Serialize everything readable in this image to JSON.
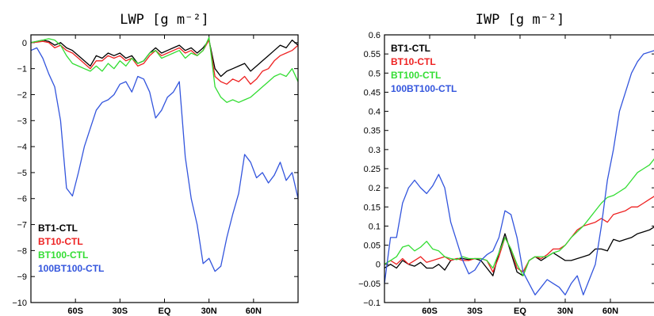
{
  "chart_data": [
    {
      "type": "line",
      "title": "LWP [g m⁻²]",
      "xlabel": "",
      "ylabel": "",
      "x_unit": "latitude (degrees, negative = south)",
      "xlim": [
        -90,
        90
      ],
      "ylim": [
        -10,
        0.3
      ],
      "yticks": [
        0,
        -1,
        -2,
        -3,
        -4,
        -5,
        -6,
        -7,
        -8,
        -9,
        -10
      ],
      "ytick_labels": [
        "0",
        "−1",
        "−2",
        "−3",
        "−4",
        "−5",
        "−6",
        "−7",
        "−8",
        "−9",
        "−10"
      ],
      "xticks": [
        -60,
        -30,
        0,
        30,
        60
      ],
      "xtick_labels": [
        "60S",
        "30S",
        "EQ",
        "30N",
        "60N"
      ],
      "legend_position": "bottom-left",
      "x": [
        -90,
        -86,
        -82,
        -78,
        -74,
        -70,
        -66,
        -62,
        -58,
        -54,
        -50,
        -46,
        -42,
        -38,
        -34,
        -30,
        -26,
        -22,
        -18,
        -14,
        -10,
        -6,
        -2,
        2,
        6,
        10,
        14,
        18,
        22,
        26,
        30,
        34,
        38,
        42,
        46,
        50,
        54,
        58,
        62,
        66,
        70,
        74,
        78,
        82,
        86,
        90
      ],
      "series": [
        {
          "name": "BT1-CTL",
          "color": "#000000",
          "values": [
            0,
            0.05,
            0.1,
            0.05,
            -0.1,
            0,
            -0.2,
            -0.3,
            -0.5,
            -0.7,
            -0.9,
            -0.5,
            -0.6,
            -0.4,
            -0.5,
            -0.4,
            -0.6,
            -0.5,
            -0.8,
            -0.7,
            -0.4,
            -0.2,
            -0.4,
            -0.3,
            -0.2,
            -0.1,
            -0.3,
            -0.2,
            -0.4,
            -0.2,
            0.1,
            -1.0,
            -1.3,
            -1.1,
            -1.0,
            -0.9,
            -0.8,
            -1.1,
            -0.9,
            -0.7,
            -0.5,
            -0.3,
            -0.1,
            -0.2,
            0.1,
            -0.1
          ]
        },
        {
          "name": "BT10-CTL",
          "color": "#ee2222",
          "values": [
            0,
            0.02,
            0.05,
            0,
            -0.2,
            -0.1,
            -0.3,
            -0.4,
            -0.6,
            -0.8,
            -1.0,
            -0.7,
            -0.7,
            -0.5,
            -0.6,
            -0.5,
            -0.7,
            -0.6,
            -0.9,
            -0.8,
            -0.5,
            -0.3,
            -0.5,
            -0.4,
            -0.3,
            -0.2,
            -0.4,
            -0.3,
            -0.5,
            -0.3,
            0.1,
            -1.3,
            -1.5,
            -1.6,
            -1.4,
            -1.5,
            -1.3,
            -1.6,
            -1.4,
            -1.1,
            -1.0,
            -0.7,
            -0.5,
            -0.4,
            -0.3,
            -0.1
          ]
        },
        {
          "name": "BT100-CTL",
          "color": "#33dd33",
          "values": [
            0,
            0.05,
            0.1,
            0.15,
            0.1,
            -0.1,
            -0.5,
            -0.8,
            -0.9,
            -1.0,
            -1.1,
            -0.9,
            -1.1,
            -0.8,
            -1.0,
            -0.7,
            -0.9,
            -0.6,
            -0.8,
            -0.7,
            -0.4,
            -0.3,
            -0.6,
            -0.5,
            -0.4,
            -0.3,
            -0.6,
            -0.4,
            -0.5,
            -0.3,
            0.2,
            -1.7,
            -2.1,
            -2.3,
            -2.2,
            -2.3,
            -2.2,
            -2.1,
            -1.9,
            -1.7,
            -1.5,
            -1.3,
            -1.2,
            -1.3,
            -1.0,
            -1.5
          ]
        },
        {
          "name": "100BT100-CTL",
          "color": "#3355dd",
          "values": [
            -0.3,
            -0.2,
            -0.6,
            -1.2,
            -1.7,
            -3.0,
            -5.6,
            -5.9,
            -5.0,
            -4.0,
            -3.3,
            -2.6,
            -2.3,
            -2.2,
            -2.0,
            -1.6,
            -1.5,
            -1.9,
            -1.3,
            -1.4,
            -1.9,
            -2.9,
            -2.6,
            -2.1,
            -1.9,
            -1.5,
            -4.4,
            -6.0,
            -7.0,
            -8.5,
            -8.3,
            -8.8,
            -8.6,
            -7.5,
            -6.6,
            -5.8,
            -4.3,
            -4.6,
            -5.2,
            -5.0,
            -5.4,
            -5.1,
            -4.6,
            -5.3,
            -5.0,
            -6.0
          ]
        }
      ]
    },
    {
      "type": "line",
      "title": "IWP [g m⁻²]",
      "xlabel": "",
      "ylabel": "",
      "x_unit": "latitude (degrees, negative = south)",
      "xlim": [
        -90,
        90
      ],
      "ylim": [
        -0.1,
        0.6
      ],
      "yticks": [
        0.6,
        0.55,
        0.5,
        0.45,
        0.4,
        0.35,
        0.3,
        0.25,
        0.2,
        0.15,
        0.1,
        0.05,
        0,
        -0.05,
        -0.1
      ],
      "ytick_labels": [
        "0.6",
        "0.55",
        "0.5",
        "0.45",
        "0.4",
        "0.35",
        "0.3",
        "0.25",
        "0.2",
        "0.15",
        "0.1",
        "0.05",
        "0",
        "−0.05",
        "−0.1"
      ],
      "xticks": [
        -60,
        -30,
        0,
        30,
        60
      ],
      "xtick_labels": [
        "60S",
        "30S",
        "EQ",
        "30N",
        "60N"
      ],
      "legend_position": "top-left",
      "x": [
        -90,
        -86,
        -82,
        -78,
        -74,
        -70,
        -66,
        -62,
        -58,
        -54,
        -50,
        -46,
        -42,
        -38,
        -34,
        -30,
        -26,
        -22,
        -18,
        -14,
        -10,
        -6,
        -2,
        2,
        6,
        10,
        14,
        18,
        22,
        26,
        30,
        34,
        38,
        42,
        46,
        50,
        54,
        58,
        62,
        66,
        70,
        74,
        78,
        82,
        86,
        90
      ],
      "series": [
        {
          "name": "BT1-CTL",
          "color": "#000000",
          "values": [
            -0.01,
            0,
            -0.01,
            0.01,
            0,
            -0.005,
            0.005,
            -0.01,
            -0.01,
            0,
            -0.015,
            0.01,
            0.015,
            0.015,
            0.012,
            0.015,
            0.01,
            -0.01,
            -0.03,
            0.03,
            0.08,
            0.03,
            -0.02,
            -0.03,
            0.01,
            0.02,
            0.01,
            0.02,
            0.03,
            0.02,
            0.01,
            0.01,
            0.015,
            0.02,
            0.025,
            0.04,
            0.04,
            0.035,
            0.065,
            0.06,
            0.065,
            0.07,
            0.08,
            0.085,
            0.09,
            0.1
          ]
        },
        {
          "name": "BT10-CTL",
          "color": "#ee2222",
          "values": [
            0,
            0.01,
            0,
            0.015,
            0,
            0.01,
            0.02,
            0.005,
            0.01,
            0.015,
            0.02,
            0.01,
            0.015,
            0.01,
            0.01,
            0.015,
            0.015,
            0.01,
            -0.02,
            0.02,
            0.07,
            0.04,
            -0.01,
            -0.02,
            0.01,
            0.02,
            0.015,
            0.025,
            0.04,
            0.04,
            0.05,
            0.07,
            0.09,
            0.1,
            0.105,
            0.11,
            0.12,
            0.11,
            0.13,
            0.135,
            0.14,
            0.15,
            0.15,
            0.16,
            0.17,
            0.18
          ]
        },
        {
          "name": "BT100-CTL",
          "color": "#33dd33",
          "values": [
            0,
            0.01,
            0.02,
            0.045,
            0.05,
            0.035,
            0.045,
            0.06,
            0.04,
            0.035,
            0.02,
            0.015,
            0.012,
            0.02,
            0.015,
            0.015,
            0.015,
            0.01,
            -0.01,
            0.03,
            0.07,
            0.04,
            0,
            -0.03,
            0.01,
            0.02,
            0.02,
            0.02,
            0.03,
            0.035,
            0.05,
            0.07,
            0.085,
            0.1,
            0.12,
            0.14,
            0.16,
            0.175,
            0.18,
            0.19,
            0.2,
            0.22,
            0.24,
            0.25,
            0.26,
            0.28
          ]
        },
        {
          "name": "100BT100-CTL",
          "color": "#3355dd",
          "values": [
            -0.05,
            0.07,
            0.07,
            0.16,
            0.2,
            0.22,
            0.2,
            0.185,
            0.205,
            0.235,
            0.2,
            0.11,
            0.06,
            0.01,
            -0.025,
            -0.015,
            0.01,
            0.025,
            0.035,
            0.07,
            0.14,
            0.13,
            0.07,
            -0.02,
            -0.05,
            -0.08,
            -0.06,
            -0.04,
            -0.05,
            -0.06,
            -0.08,
            -0.05,
            -0.03,
            -0.08,
            -0.04,
            0.0,
            0.1,
            0.22,
            0.3,
            0.4,
            0.45,
            0.5,
            0.53,
            0.55,
            0.555,
            0.56
          ]
        }
      ]
    }
  ]
}
